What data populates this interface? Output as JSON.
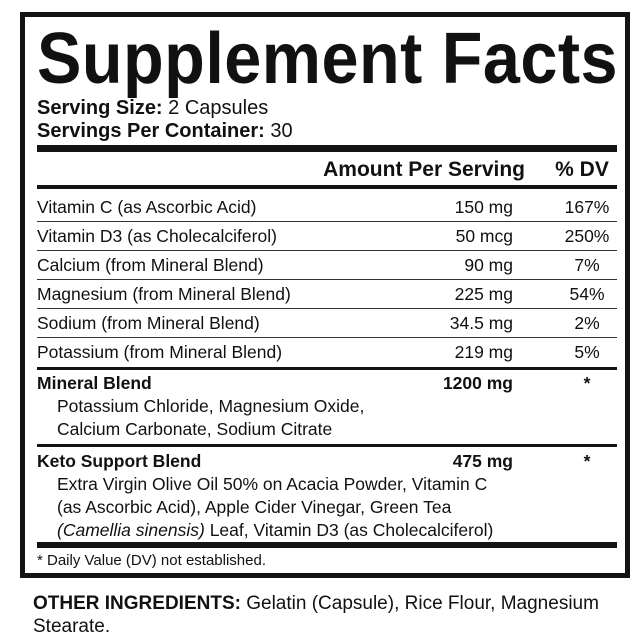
{
  "title": "Supplement Facts",
  "serving_size": {
    "label": "Serving Size:",
    "value": "2 Capsules"
  },
  "servings_per_container": {
    "label": "Servings Per Container:",
    "value": "30"
  },
  "header": {
    "amount": "Amount Per Serving",
    "dv": "% DV"
  },
  "nutrients": [
    {
      "name": "Vitamin C (as Ascorbic Acid)",
      "amount": "150 mg",
      "dv": "167%"
    },
    {
      "name": "Vitamin D3 (as Cholecalciferol)",
      "amount": "50 mcg",
      "dv": "250%"
    },
    {
      "name": "Calcium (from Mineral Blend)",
      "amount": "90 mg",
      "dv": "7%"
    },
    {
      "name": "Magnesium (from Mineral Blend)",
      "amount": "225 mg",
      "dv": "54%"
    },
    {
      "name": "Sodium (from Mineral Blend)",
      "amount": "34.5 mg",
      "dv": "2%"
    },
    {
      "name": "Potassium (from Mineral Blend)",
      "amount": "219 mg",
      "dv": "5%"
    }
  ],
  "blends": [
    {
      "name": "Mineral Blend",
      "amount": "1200 mg",
      "dv": "*",
      "lines": [
        "Potassium Chloride, Magnesium Oxide,",
        "Calcium Carbonate, Sodium Citrate"
      ]
    },
    {
      "name": "Keto Support Blend",
      "amount": "475 mg",
      "dv": "*",
      "lines": [
        "Extra Virgin Olive Oil 50% on Acacia Powder, Vitamin C",
        "(as Ascorbic Acid), Apple Cider Vinegar, Green Tea"
      ],
      "last_line_italic": "(Camellia sinensis)",
      "last_line_rest": " Leaf, Vitamin D3 (as Cholecalciferol)"
    }
  ],
  "footnote": "* Daily Value (DV) not established.",
  "other_ingredients": {
    "label": "OTHER INGREDIENTS:",
    "value": " Gelatin (Capsule), Rice Flour, Magnesium Stearate."
  }
}
